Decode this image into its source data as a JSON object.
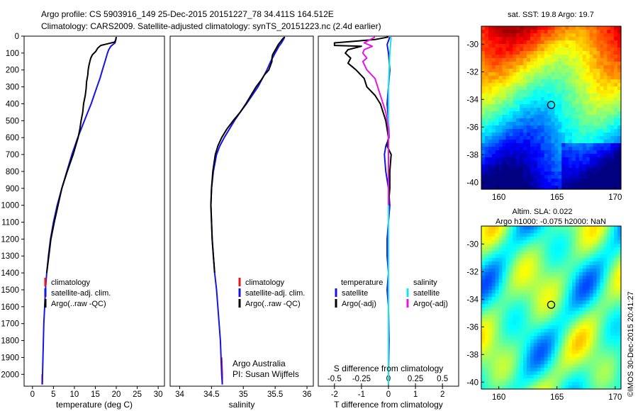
{
  "header": {
    "line1": "Argo profile: CS 5903916_149 25-Dec-2015 20151227_78 34.411S 164.512E",
    "line2": "Climatology: CARS2009. Satellite-adjusted climatology: synTS_20151223.nc (2.4d earlier)"
  },
  "side_stamp": "©IMOS 30-Dec-2015 20:41:27",
  "colors": {
    "climatology": "#e8141e",
    "satellite": "#1414e6",
    "argo": "#000000",
    "salinity_satellite": "#14e6e6",
    "salinity_argo": "#e614e6"
  },
  "credit": {
    "line1": "Argo Australia",
    "line2": "PI: Susan Wijffels"
  },
  "maps": [
    {
      "title": "sat. SST: 19.8 Argo: 19.7",
      "title2": "",
      "palette": "jet",
      "x_ticks": [
        "160",
        "165",
        "170"
      ],
      "y_ticks": [
        "-30",
        "-32",
        "-34",
        "-36",
        "-38",
        "-40"
      ],
      "xlim": [
        158.5,
        170.5
      ],
      "ylim": [
        -40.5,
        -28.7
      ],
      "marker": {
        "lon": 164.5,
        "lat": -34.4
      }
    },
    {
      "title": "Altim. SLA: 0.022",
      "title2": "Argo h1000: -0.075 h2000: NaN",
      "palette": "greenish",
      "x_ticks": [
        "160",
        "165",
        "170"
      ],
      "y_ticks": [
        "-30",
        "-32",
        "-34",
        "-36",
        "-38",
        "-40"
      ],
      "xlim": [
        158.5,
        170.5
      ],
      "ylim": [
        -40.5,
        -28.7
      ],
      "marker": {
        "lon": 164.5,
        "lat": -34.4
      }
    }
  ],
  "chart_data": [
    {
      "type": "line",
      "panel": "temperature",
      "xlabel": "temperature (deg C)",
      "x_ticks": [
        0,
        5,
        10,
        15,
        20,
        25,
        30
      ],
      "xlim": [
        -2,
        31.5
      ],
      "ylim": [
        2070,
        0
      ],
      "y_ticks": [
        0,
        100,
        200,
        300,
        400,
        500,
        600,
        700,
        800,
        900,
        1000,
        1100,
        1200,
        1300,
        1400,
        1500,
        1600,
        1700,
        1800,
        1900,
        2000
      ],
      "legend": {
        "placement": "lower-center",
        "entries": [
          "climatology",
          "satellite-adj. clim.",
          "Argo(..raw -QC)"
        ]
      },
      "series": [
        {
          "name": "climatology",
          "color_key": "climatology",
          "depth": [
            2000,
            2030,
            2060
          ],
          "values": [
            2.3,
            2.3,
            2.3
          ]
        },
        {
          "name": "satellite-adj. clim.",
          "color_key": "satellite",
          "depth": [
            5,
            20,
            40,
            60,
            80,
            100,
            150,
            200,
            250,
            300,
            350,
            400,
            450,
            500,
            600,
            700,
            800,
            900,
            1000,
            1100,
            1200,
            1300,
            1400,
            1500,
            1600,
            1700,
            1800,
            1900,
            2000,
            2060
          ],
          "values": [
            20.0,
            19.9,
            19.7,
            18.7,
            18.2,
            17.9,
            17.3,
            16.7,
            16.1,
            15.4,
            14.7,
            14.0,
            13.2,
            12.4,
            10.8,
            9.4,
            8.2,
            7.0,
            5.9,
            5.0,
            4.3,
            3.8,
            3.4,
            3.1,
            2.9,
            2.7,
            2.6,
            2.5,
            2.4,
            2.35
          ]
        },
        {
          "name": "Argo(..raw -QC)",
          "color_key": "argo",
          "depth": [
            5,
            20,
            35,
            45,
            55,
            70,
            90,
            110,
            130,
            150,
            170,
            200,
            230,
            270,
            310,
            350,
            400,
            450,
            500,
            550,
            600,
            700,
            800,
            900,
            1000,
            1100,
            1200,
            1300,
            1400
          ],
          "values": [
            20.0,
            19.9,
            19.6,
            18.0,
            16.3,
            15.6,
            15.1,
            14.3,
            13.9,
            13.7,
            13.5,
            13.3,
            13.2,
            12.9,
            12.8,
            12.6,
            12.2,
            12.0,
            11.6,
            11.3,
            10.9,
            9.7,
            8.3,
            7.0,
            6.1,
            5.2,
            4.4,
            3.9,
            3.4
          ]
        }
      ]
    },
    {
      "type": "line",
      "panel": "salinity",
      "xlabel": "salinity",
      "x_ticks": [
        34,
        34.5,
        35,
        35.5,
        36
      ],
      "xlim": [
        33.85,
        36.1
      ],
      "ylim": [
        2070,
        0
      ],
      "legend": {
        "placement": "lower-center",
        "entries": [
          "climatology",
          "satellite-adj. clim.",
          "Argo(..raw -QC)"
        ]
      },
      "series": [
        {
          "name": "climatology",
          "color_key": "climatology",
          "depth": [
            1900,
            2000,
            2060
          ],
          "values": [
            34.66,
            34.67,
            34.67
          ]
        },
        {
          "name": "satellite-adj. clim.",
          "color_key": "satellite",
          "depth": [
            5,
            20,
            40,
            60,
            80,
            100,
            150,
            200,
            250,
            300,
            350,
            400,
            450,
            500,
            550,
            600,
            650,
            700,
            800,
            900,
            1000,
            1100,
            1200,
            1300,
            1400,
            1500,
            1600,
            1700,
            1800,
            1900,
            2000,
            2060
          ],
          "values": [
            35.65,
            35.63,
            35.6,
            35.56,
            35.53,
            35.5,
            35.43,
            35.37,
            35.3,
            35.23,
            35.14,
            35.05,
            34.95,
            34.86,
            34.78,
            34.7,
            34.63,
            34.58,
            34.53,
            34.5,
            34.49,
            34.5,
            34.51,
            34.53,
            34.55,
            34.58,
            34.6,
            34.62,
            34.64,
            34.65,
            34.66,
            34.67
          ]
        },
        {
          "name": "Argo(..raw -QC)",
          "color_key": "argo",
          "depth": [
            5,
            15,
            30,
            50,
            70,
            90,
            110,
            130,
            150,
            170,
            200,
            230,
            260,
            300,
            350,
            400,
            450,
            500,
            550,
            600,
            650,
            700,
            800,
            900,
            1000,
            1100,
            1200,
            1300,
            1400
          ],
          "values": [
            35.65,
            35.62,
            35.59,
            35.55,
            35.52,
            35.49,
            35.46,
            35.45,
            35.45,
            35.43,
            35.4,
            35.33,
            35.28,
            35.2,
            35.12,
            35.04,
            34.95,
            34.84,
            34.74,
            34.66,
            34.6,
            34.56,
            34.52,
            34.5,
            34.49,
            34.5,
            34.51,
            34.53,
            34.55
          ]
        }
      ]
    },
    {
      "type": "line",
      "panel": "differences",
      "xlabel": "T difference from climatology",
      "xlabel_top": "S difference from climatology",
      "x_ticks": [
        "-2",
        "-1",
        "0",
        "1",
        "2"
      ],
      "x_ticks_top": [
        "-0.5",
        "-0.25",
        "0",
        "0.25",
        "0.5"
      ],
      "xlim": [
        -2.6,
        2.6
      ],
      "ylim": [
        2070,
        0
      ],
      "legend": {
        "placement": "lower-center",
        "temperature_header": "temperature",
        "salinity_header": "salinity",
        "entries": [
          "satellite",
          "Argo(-adj)",
          "satellite",
          "Argo(-adj)"
        ]
      },
      "series": [
        {
          "name": "temperature satellite",
          "color_key": "satellite",
          "depth": [
            5,
            50,
            100,
            200,
            300,
            400,
            500,
            600,
            650,
            700,
            800,
            900,
            1000,
            1100,
            1200,
            1300,
            1400,
            1500,
            1600,
            1800,
            2000,
            2060
          ],
          "values": [
            0.05,
            -0.05,
            0.0,
            0.05,
            0.0,
            -0.05,
            0.0,
            0.02,
            -0.1,
            -0.15,
            -0.1,
            0.0,
            0.05,
            0.0,
            -0.05,
            -0.05,
            0.0,
            -0.05,
            0.0,
            0.02,
            0.0,
            0.0
          ]
        },
        {
          "name": "temperature Argo(-adj)",
          "color_key": "argo",
          "depth": [
            5,
            20,
            40,
            55,
            60,
            80,
            100,
            130,
            160,
            200,
            250,
            300,
            350,
            400,
            450,
            500,
            550,
            600,
            650,
            700,
            800,
            900,
            1000,
            1100,
            1200,
            1300
          ],
          "values": [
            0.0,
            -0.5,
            -2.0,
            -2.0,
            -1.0,
            -1.5,
            -1.6,
            -1.4,
            -1.5,
            -1.2,
            -0.9,
            -0.8,
            -0.5,
            -0.3,
            -0.2,
            -0.1,
            -0.05,
            0.0,
            -0.05,
            0.1,
            0.05,
            0.05,
            0.0,
            0.0,
            0.0,
            0.0
          ]
        },
        {
          "name": "salinity satellite",
          "color_key": "salinity_satellite",
          "depth": [
            5,
            100,
            300,
            500,
            700,
            900,
            1100,
            1300,
            1500,
            1700,
            1900,
            2060
          ],
          "values": [
            0.1,
            0.05,
            0.0,
            0.0,
            0.0,
            0.0,
            0.0,
            0.0,
            0.0,
            0.0,
            0.0,
            0.0
          ]
        },
        {
          "name": "salinity Argo(-adj)",
          "color_key": "salinity_argo",
          "depth": [
            5,
            40,
            60,
            80,
            100,
            130,
            150,
            200,
            250,
            300,
            350,
            400,
            450,
            500,
            550,
            600,
            700,
            800,
            900,
            1000
          ],
          "values": [
            -0.5,
            -0.9,
            -0.6,
            -0.9,
            -0.95,
            -0.8,
            -0.95,
            -0.8,
            -0.5,
            -0.4,
            -0.3,
            -0.2,
            -0.1,
            -0.05,
            0.0,
            0.0,
            0.0,
            0.0,
            0.0,
            0.0
          ]
        }
      ]
    }
  ]
}
